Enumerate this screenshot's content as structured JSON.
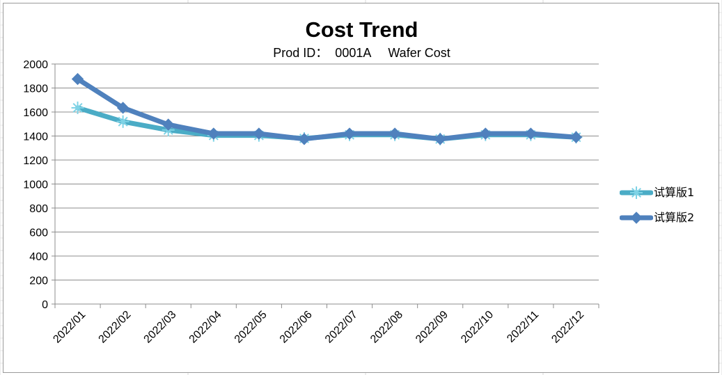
{
  "chart_data": {
    "type": "line",
    "title": "Cost Trend",
    "subtitle": "Prod ID：  0001A     Wafer Cost",
    "categories": [
      "2022/01",
      "2022/02",
      "2022/03",
      "2022/04",
      "2022/05",
      "2022/06",
      "2022/07",
      "2022/08",
      "2022/09",
      "2022/10",
      "2022/11",
      "2022/12"
    ],
    "series": [
      {
        "name": "试算版1",
        "color": "#4bacc6",
        "marker": "asterisk",
        "values": [
          1635,
          1520,
          1450,
          1405,
          1405,
          1380,
          1410,
          1410,
          1375,
          1410,
          1410,
          1390
        ]
      },
      {
        "name": "试算版2",
        "color": "#4f81bd",
        "marker": "diamond",
        "values": [
          1875,
          1635,
          1495,
          1420,
          1420,
          1375,
          1420,
          1420,
          1375,
          1420,
          1420,
          1390
        ]
      }
    ],
    "xlabel": "",
    "ylabel": "",
    "ylim": [
      0,
      2000
    ],
    "yticks": [
      0,
      200,
      400,
      600,
      800,
      1000,
      1200,
      1400,
      1600,
      1800,
      2000
    ],
    "grid": true,
    "legend_position": "right"
  }
}
